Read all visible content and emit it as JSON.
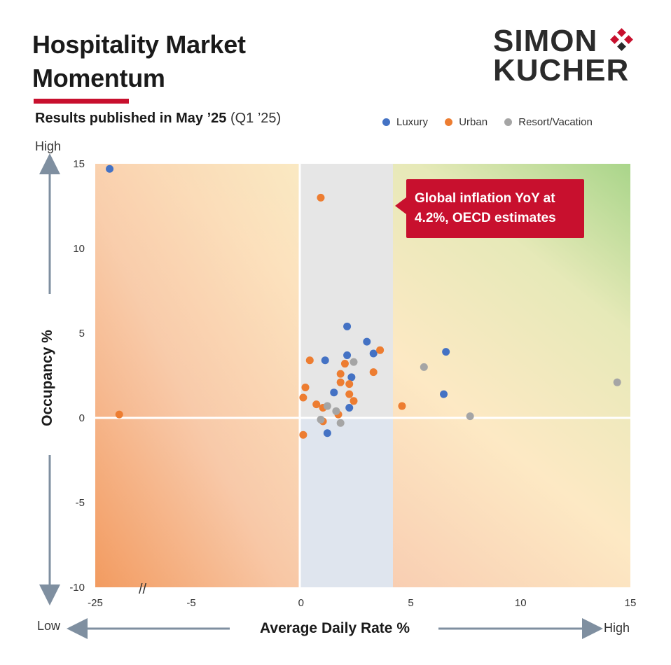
{
  "header": {
    "title": "Hospitality Market Momentum",
    "subtitle_bold": "Results published in May ’25",
    "subtitle_rest": "(Q1 ’25)"
  },
  "logo": {
    "line1": "SIMON",
    "line2": "KUCHER"
  },
  "callout": {
    "text": "Global inflation YoY at 4.2%, OECD estimates"
  },
  "axes": {
    "y_high": "High",
    "y_low": "",
    "x_low": "Low",
    "x_high": "High"
  },
  "colors": {
    "accent": "#c8102e",
    "Luxury": "#4472c4",
    "Urban": "#ed7d31",
    "Resort/Vacation": "#a5a5a5"
  },
  "chart_data": {
    "type": "scatter",
    "xlabel": "Average Daily Rate %",
    "ylabel": "Occupancy %",
    "xlim": [
      -25,
      15
    ],
    "ylim": [
      -10,
      15
    ],
    "x_ticks": [
      -25,
      -5,
      0,
      5,
      10,
      15
    ],
    "x_tick_labels": [
      "-25",
      "-5",
      "0",
      "5",
      "10",
      "15"
    ],
    "x_axis_break": true,
    "y_ticks": [
      -10,
      -5,
      0,
      5,
      10,
      15
    ],
    "shaded_band_x": [
      0,
      4.2
    ],
    "legend_position": "top-right",
    "series": [
      {
        "name": "Luxury",
        "points": [
          [
            -22,
            14.7
          ],
          [
            2.1,
            5.4
          ],
          [
            3.0,
            4.5
          ],
          [
            3.3,
            3.8
          ],
          [
            2.1,
            3.7
          ],
          [
            1.1,
            3.4
          ],
          [
            2.3,
            2.4
          ],
          [
            1.5,
            1.5
          ],
          [
            2.2,
            0.6
          ],
          [
            1.2,
            -0.9
          ],
          [
            6.6,
            3.9
          ],
          [
            6.5,
            1.4
          ]
        ]
      },
      {
        "name": "Urban",
        "points": [
          [
            -20,
            0.2
          ],
          [
            0.9,
            13.0
          ],
          [
            3.6,
            4.0
          ],
          [
            0.4,
            3.4
          ],
          [
            2.0,
            3.2
          ],
          [
            3.3,
            2.7
          ],
          [
            1.8,
            2.6
          ],
          [
            1.8,
            2.1
          ],
          [
            2.2,
            2.0
          ],
          [
            0.2,
            1.8
          ],
          [
            2.2,
            1.4
          ],
          [
            0.1,
            1.2
          ],
          [
            2.4,
            1.0
          ],
          [
            0.7,
            0.8
          ],
          [
            1.0,
            0.6
          ],
          [
            1.7,
            0.2
          ],
          [
            1.0,
            -0.2
          ],
          [
            0.1,
            -1.0
          ],
          [
            4.6,
            0.7
          ]
        ]
      },
      {
        "name": "Resort/Vacation",
        "points": [
          [
            2.4,
            3.3
          ],
          [
            5.6,
            3.0
          ],
          [
            14.4,
            2.1
          ],
          [
            1.2,
            0.7
          ],
          [
            1.6,
            0.4
          ],
          [
            7.7,
            0.1
          ],
          [
            0.9,
            -0.1
          ],
          [
            1.8,
            -0.3
          ]
        ]
      }
    ]
  }
}
